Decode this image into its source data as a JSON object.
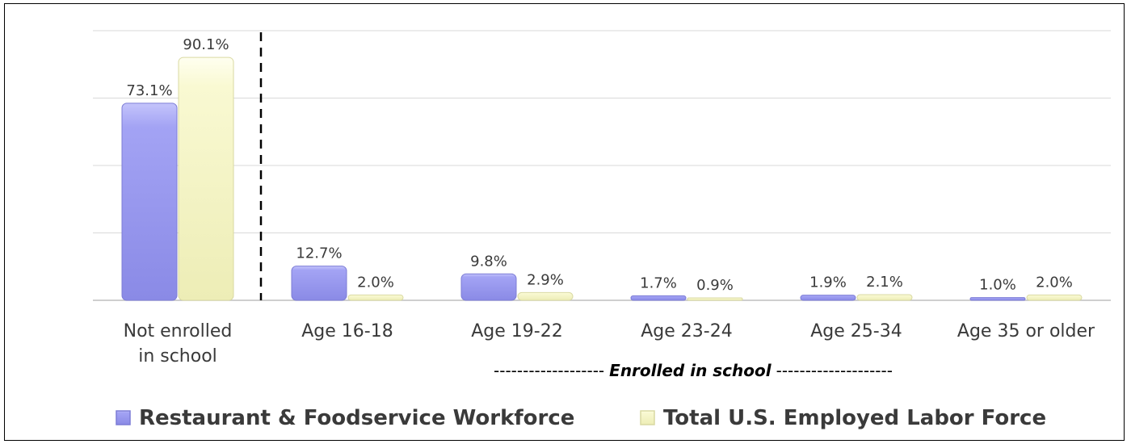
{
  "chart_data": {
    "type": "bar",
    "categories": [
      [
        "Not enrolled",
        "in school"
      ],
      [
        "Age 16-18"
      ],
      [
        "Age 19-22"
      ],
      [
        "Age 23-24"
      ],
      [
        "Age 25-34"
      ],
      [
        "Age 35 or older"
      ]
    ],
    "series": [
      {
        "name": "Restaurant & Foodservice Workforce",
        "values": [
          73.1,
          12.7,
          9.8,
          1.7,
          1.9,
          1.0
        ],
        "labels": [
          "73.1%",
          "12.7%",
          "9.8%",
          "1.7%",
          "1.9%",
          "1.0%"
        ],
        "color": "#9b9bf0"
      },
      {
        "name": "Total U.S. Employed Labor Force",
        "values": [
          90.1,
          2.0,
          2.9,
          0.9,
          2.1,
          2.0
        ],
        "labels": [
          "90.1%",
          "2.0%",
          "2.9%",
          "0.9%",
          "2.1%",
          "2.0%"
        ],
        "color": "#f7f7c8"
      }
    ],
    "ylim": [
      0,
      100
    ],
    "grid": true,
    "annotation": {
      "dashes_left": "-------------------",
      "text": "Enrolled in school",
      "dashes_right": "--------------------"
    },
    "legend_position": "bottom-left"
  }
}
